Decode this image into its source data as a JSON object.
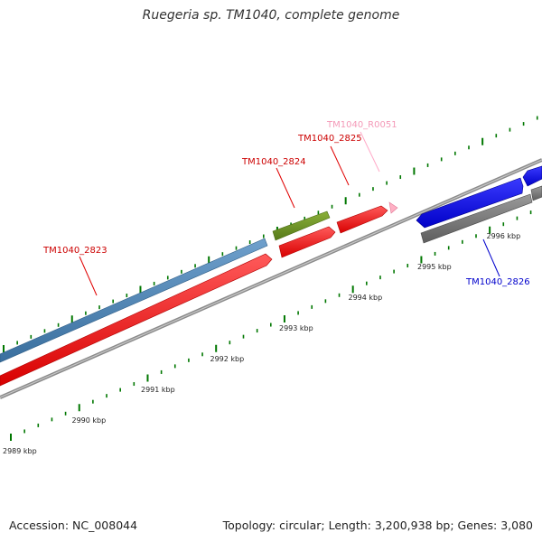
{
  "title": "Ruegeria sp. TM1040, complete genome",
  "footer": {
    "accession": "Accession: NC_008044",
    "summary": "Topology: circular; Length: 3,200,938 bp; Genes: 3,080"
  },
  "scale_labels": [
    {
      "kbp": 2989,
      "label": "2989 kbp"
    },
    {
      "kbp": 2990,
      "label": "2990 kbp"
    },
    {
      "kbp": 2991,
      "label": "2991 kbp"
    },
    {
      "kbp": 2992,
      "label": "2992 kbp"
    },
    {
      "kbp": 2993,
      "label": "2993 kbp"
    },
    {
      "kbp": 2994,
      "label": "2994 kbp"
    },
    {
      "kbp": 2995,
      "label": "2995 kbp"
    },
    {
      "kbp": 2996,
      "label": "2996 kbp"
    }
  ],
  "gene_labels": {
    "g2823": "TM1040_2823",
    "g2824": "TM1040_2824",
    "g2825": "TM1040_2825",
    "r0051": "TM1040_R0051",
    "g2826": "TM1040_2826"
  },
  "colors": {
    "cds_forward": "#ff0000",
    "cds_reverse": "#0000ff",
    "gene_track": "#808080",
    "steelblue_feature": "#4682b4",
    "olive_feature": "#6b8e23",
    "rna": "#ffb6c1",
    "scale_ticks": "#007700"
  }
}
